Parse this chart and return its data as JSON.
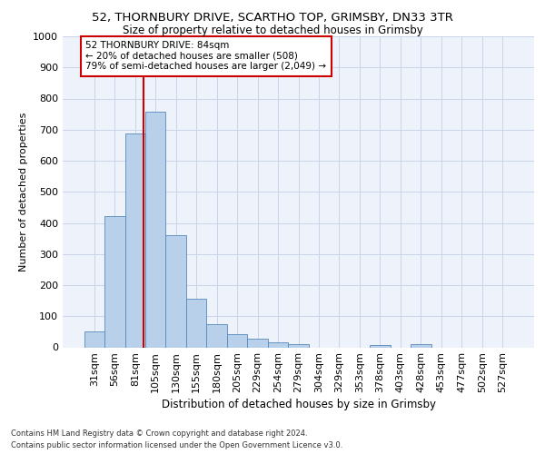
{
  "title1": "52, THORNBURY DRIVE, SCARTHO TOP, GRIMSBY, DN33 3TR",
  "title2": "Size of property relative to detached houses in Grimsby",
  "xlabel": "Distribution of detached houses by size in Grimsby",
  "ylabel": "Number of detached properties",
  "categories": [
    "31sqm",
    "56sqm",
    "81sqm",
    "105sqm",
    "130sqm",
    "155sqm",
    "180sqm",
    "205sqm",
    "229sqm",
    "254sqm",
    "279sqm",
    "304sqm",
    "329sqm",
    "353sqm",
    "378sqm",
    "403sqm",
    "428sqm",
    "453sqm",
    "477sqm",
    "502sqm",
    "527sqm"
  ],
  "values": [
    52,
    422,
    688,
    757,
    362,
    155,
    74,
    41,
    27,
    17,
    10,
    0,
    0,
    0,
    8,
    0,
    10,
    0,
    0,
    0,
    0
  ],
  "bar_color": "#b8d0ea",
  "bar_edge_color": "#5588bb",
  "grid_color": "#c8d4e8",
  "annotation_text": "52 THORNBURY DRIVE: 84sqm\n← 20% of detached houses are smaller (508)\n79% of semi-detached houses are larger (2,049) →",
  "annotation_box_color": "#ffffff",
  "annotation_box_edge": "#cc0000",
  "vline_color": "#cc0000",
  "vline_x": 2.42,
  "footer1": "Contains HM Land Registry data © Crown copyright and database right 2024.",
  "footer2": "Contains public sector information licensed under the Open Government Licence v3.0.",
  "ylim": [
    0,
    1000
  ],
  "yticks": [
    0,
    100,
    200,
    300,
    400,
    500,
    600,
    700,
    800,
    900,
    1000
  ],
  "background_color": "#edf2fb",
  "title1_fontsize": 9.5,
  "title2_fontsize": 8.5,
  "ylabel_fontsize": 8,
  "xlabel_fontsize": 8.5,
  "tick_fontsize": 8,
  "annot_fontsize": 7.5,
  "footer_fontsize": 6
}
